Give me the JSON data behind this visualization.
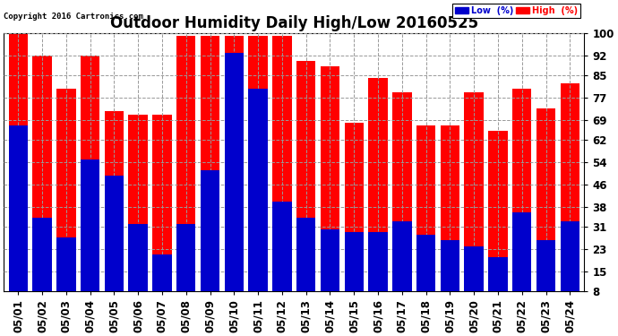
{
  "title": "Outdoor Humidity Daily High/Low 20160525",
  "copyright": "Copyright 2016 Cartronics.com",
  "dates": [
    "05/01",
    "05/02",
    "05/03",
    "05/04",
    "05/05",
    "05/06",
    "05/07",
    "05/08",
    "05/09",
    "05/10",
    "05/11",
    "05/12",
    "05/13",
    "05/14",
    "05/15",
    "05/16",
    "05/17",
    "05/18",
    "05/19",
    "05/20",
    "05/21",
    "05/22",
    "05/23",
    "05/24"
  ],
  "high": [
    100,
    92,
    80,
    92,
    72,
    71,
    71,
    99,
    99,
    99,
    99,
    99,
    90,
    88,
    68,
    84,
    79,
    67,
    67,
    79,
    65,
    80,
    73,
    82
  ],
  "low": [
    67,
    34,
    27,
    55,
    49,
    32,
    21,
    32,
    51,
    93,
    80,
    40,
    34,
    30,
    29,
    29,
    33,
    28,
    26,
    24,
    20,
    36,
    26,
    33
  ],
  "low_color": "#0000cc",
  "high_color": "#ff0000",
  "bg_color": "#ffffff",
  "plot_bg_color": "#ffffff",
  "grid_color": "#999999",
  "yticks": [
    8,
    15,
    23,
    31,
    38,
    46,
    54,
    62,
    69,
    77,
    85,
    92,
    100
  ],
  "ymin": 8,
  "ymax": 100,
  "bar_width": 0.8,
  "title_fontsize": 12,
  "tick_fontsize": 8.5,
  "legend_low_label": "Low  (%)",
  "legend_high_label": "High  (%)"
}
